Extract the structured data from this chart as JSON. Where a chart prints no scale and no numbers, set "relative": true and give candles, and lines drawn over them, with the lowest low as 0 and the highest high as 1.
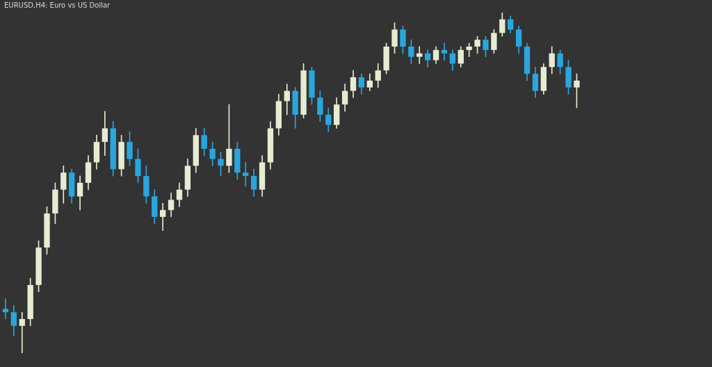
{
  "chart_data": {
    "type": "candlestick",
    "title": "EURUSD,H4:  Euro vs US Dollar",
    "relative": true,
    "tick_labels": false,
    "categories": [
      null,
      null,
      null,
      null,
      null,
      null,
      null,
      null,
      null,
      null,
      null,
      null,
      null,
      null,
      null,
      null,
      null,
      null,
      null,
      null,
      null,
      null,
      null,
      null,
      null,
      null,
      null,
      null,
      null,
      null,
      null,
      null,
      null,
      null,
      null,
      null,
      null,
      null,
      null,
      null,
      null,
      null,
      null,
      null,
      null,
      null,
      null,
      null,
      null,
      null,
      null,
      null,
      null,
      null,
      null,
      null,
      null,
      null,
      null,
      null,
      null,
      null,
      null,
      null,
      null,
      null,
      null,
      null,
      null,
      null,
      null,
      null,
      null,
      null,
      null,
      null,
      null,
      null,
      null,
      null,
      null,
      null,
      null,
      null,
      null
    ],
    "ohlc": [
      [
        0.13,
        0.16,
        0.1,
        0.12
      ],
      [
        0.12,
        0.14,
        0.05,
        0.08
      ],
      [
        0.08,
        0.12,
        0.0,
        0.1
      ],
      [
        0.1,
        0.22,
        0.08,
        0.2
      ],
      [
        0.2,
        0.33,
        0.18,
        0.31
      ],
      [
        0.31,
        0.43,
        0.29,
        0.41
      ],
      [
        0.41,
        0.5,
        0.38,
        0.48
      ],
      [
        0.48,
        0.55,
        0.44,
        0.53
      ],
      [
        0.53,
        0.54,
        0.44,
        0.46
      ],
      [
        0.46,
        0.52,
        0.42,
        0.5
      ],
      [
        0.5,
        0.58,
        0.48,
        0.56
      ],
      [
        0.56,
        0.64,
        0.54,
        0.62
      ],
      [
        0.62,
        0.71,
        0.58,
        0.66
      ],
      [
        0.66,
        0.68,
        0.52,
        0.54
      ],
      [
        0.54,
        0.64,
        0.52,
        0.62
      ],
      [
        0.62,
        0.65,
        0.55,
        0.57
      ],
      [
        0.57,
        0.6,
        0.5,
        0.52
      ],
      [
        0.52,
        0.55,
        0.44,
        0.46
      ],
      [
        0.46,
        0.48,
        0.38,
        0.4
      ],
      [
        0.4,
        0.44,
        0.36,
        0.42
      ],
      [
        0.42,
        0.47,
        0.4,
        0.45
      ],
      [
        0.45,
        0.5,
        0.43,
        0.48
      ],
      [
        0.48,
        0.57,
        0.46,
        0.55
      ],
      [
        0.55,
        0.66,
        0.53,
        0.64
      ],
      [
        0.64,
        0.66,
        0.58,
        0.6
      ],
      [
        0.6,
        0.62,
        0.55,
        0.57
      ],
      [
        0.57,
        0.59,
        0.52,
        0.55
      ],
      [
        0.55,
        0.73,
        0.53,
        0.6
      ],
      [
        0.6,
        0.62,
        0.51,
        0.53
      ],
      [
        0.53,
        0.56,
        0.49,
        0.52
      ],
      [
        0.52,
        0.54,
        0.46,
        0.48
      ],
      [
        0.48,
        0.58,
        0.46,
        0.56
      ],
      [
        0.56,
        0.68,
        0.54,
        0.66
      ],
      [
        0.66,
        0.76,
        0.64,
        0.74
      ],
      [
        0.74,
        0.79,
        0.7,
        0.77
      ],
      [
        0.77,
        0.78,
        0.66,
        0.7
      ],
      [
        0.7,
        0.85,
        0.69,
        0.83
      ],
      [
        0.83,
        0.84,
        0.73,
        0.75
      ],
      [
        0.75,
        0.77,
        0.68,
        0.7
      ],
      [
        0.7,
        0.72,
        0.65,
        0.67
      ],
      [
        0.67,
        0.75,
        0.66,
        0.73
      ],
      [
        0.73,
        0.79,
        0.71,
        0.77
      ],
      [
        0.77,
        0.83,
        0.75,
        0.81
      ],
      [
        0.81,
        0.82,
        0.76,
        0.78
      ],
      [
        0.78,
        0.82,
        0.77,
        0.8
      ],
      [
        0.8,
        0.85,
        0.78,
        0.83
      ],
      [
        0.83,
        0.91,
        0.82,
        0.9
      ],
      [
        0.9,
        0.97,
        0.88,
        0.95
      ],
      [
        0.95,
        0.96,
        0.88,
        0.9
      ],
      [
        0.9,
        0.92,
        0.85,
        0.87
      ],
      [
        0.87,
        0.9,
        0.85,
        0.88
      ],
      [
        0.88,
        0.89,
        0.84,
        0.86
      ],
      [
        0.86,
        0.9,
        0.85,
        0.89
      ],
      [
        0.89,
        0.91,
        0.86,
        0.88
      ],
      [
        0.88,
        0.89,
        0.83,
        0.85
      ],
      [
        0.85,
        0.9,
        0.84,
        0.89
      ],
      [
        0.89,
        0.91,
        0.87,
        0.9
      ],
      [
        0.9,
        0.93,
        0.88,
        0.92
      ],
      [
        0.92,
        0.93,
        0.87,
        0.89
      ],
      [
        0.89,
        0.95,
        0.88,
        0.94
      ],
      [
        0.94,
        1.0,
        0.93,
        0.98
      ],
      [
        0.98,
        0.99,
        0.94,
        0.95
      ],
      [
        0.95,
        0.96,
        0.88,
        0.9
      ],
      [
        0.9,
        0.91,
        0.8,
        0.82
      ],
      [
        0.82,
        0.84,
        0.75,
        0.77
      ],
      [
        0.77,
        0.85,
        0.76,
        0.84
      ],
      [
        0.84,
        0.9,
        0.82,
        0.88
      ],
      [
        0.88,
        0.89,
        0.82,
        0.84
      ],
      [
        0.84,
        0.86,
        0.76,
        0.78
      ],
      [
        0.78,
        0.82,
        0.72,
        0.8
      ],
      null,
      null,
      null,
      null,
      null,
      null,
      null,
      null,
      null,
      null,
      null,
      null,
      null,
      null,
      null
    ],
    "colors": [
      "#2aa6de",
      "#2aa6de",
      "#e6ecd2",
      "#e6ecd2",
      "#e6ecd2",
      "#e6ecd2",
      "#e6ecd2",
      "#e6ecd2",
      "#2aa6de",
      "#e6ecd2",
      "#e6ecd2",
      "#e6ecd2",
      "#e6ecd2",
      "#2aa6de",
      "#e6ecd2",
      "#2aa6de",
      "#2aa6de",
      "#2aa6de",
      "#2aa6de",
      "#e6ecd2",
      "#e6ecd2",
      "#e6ecd2",
      "#e6ecd2",
      "#e6ecd2",
      "#2aa6de",
      "#2aa6de",
      "#2aa6de",
      "#e6ecd2",
      "#2aa6de",
      "#2aa6de",
      "#2aa6de",
      "#e6ecd2",
      "#e6ecd2",
      "#e6ecd2",
      "#e6ecd2",
      "#2aa6de",
      "#e6ecd2",
      "#2aa6de",
      "#2aa6de",
      "#2aa6de",
      "#e6ecd2",
      "#e6ecd2",
      "#e6ecd2",
      "#2aa6de",
      "#e6ecd2",
      "#e6ecd2",
      "#e6ecd2",
      "#e6ecd2",
      "#2aa6de",
      "#2aa6de",
      "#e6ecd2",
      "#2aa6de",
      "#e6ecd2",
      "#2aa6de",
      "#2aa6de",
      "#e6ecd2",
      "#e6ecd2",
      "#e6ecd2",
      "#2aa6de",
      "#e6ecd2",
      "#e6ecd2",
      "#2aa6de",
      "#2aa6de",
      "#2aa6de",
      "#2aa6de",
      "#e6ecd2",
      "#e6ecd2",
      "#2aa6de",
      "#2aa6de",
      "#e6ecd2",
      null,
      null,
      null,
      null,
      null,
      null,
      null,
      null,
      null,
      null,
      null,
      null,
      null,
      null,
      null
    ]
  }
}
